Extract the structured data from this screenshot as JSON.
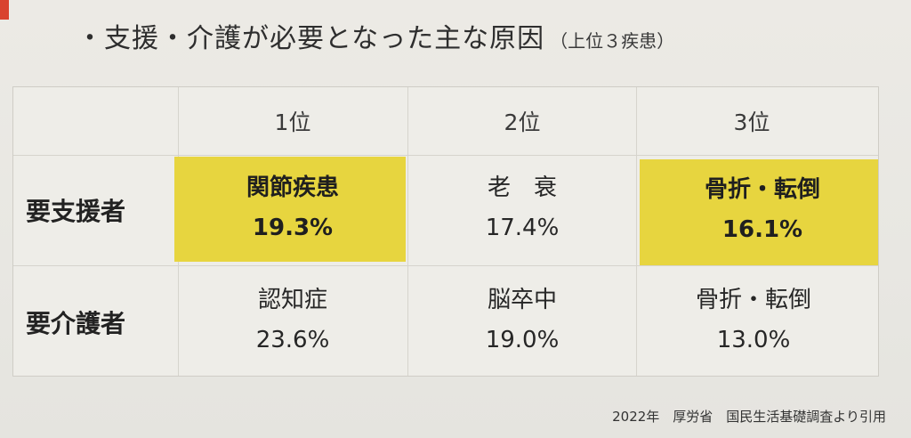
{
  "title": {
    "main": "・支援・介護が必要となった主な原因",
    "sub": "（上位３疾患）"
  },
  "table": {
    "rank_headers": [
      "1位",
      "2位",
      "3位"
    ],
    "rows": [
      {
        "label": "要支援者",
        "cells": [
          {
            "name": "関節疾患",
            "percent": "19.3%",
            "highlighted": true
          },
          {
            "name": "老　衰",
            "percent": "17.4%",
            "highlighted": false
          },
          {
            "name": "骨折・転倒",
            "percent": "16.1%",
            "highlighted": true
          }
        ]
      },
      {
        "label": "要介護者",
        "cells": [
          {
            "name": "認知症",
            "percent": "23.6%",
            "highlighted": false
          },
          {
            "name": "脳卒中",
            "percent": "19.0%",
            "highlighted": false
          },
          {
            "name": "骨折・転倒",
            "percent": "13.0%",
            "highlighted": false
          }
        ]
      }
    ],
    "highlight_color": "#e7d53f"
  },
  "source": "2022年　厚労省　国民生活基礎調査より引用"
}
